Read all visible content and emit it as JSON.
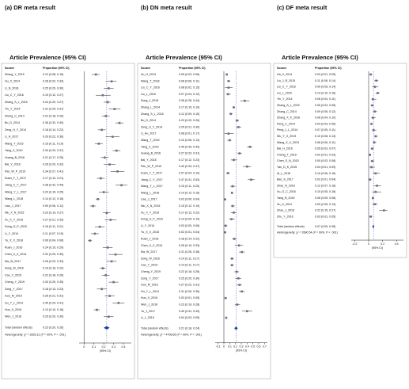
{
  "chart_data": [
    {
      "type": "forest",
      "title": "(a)  DR meta result",
      "subtitle": "Article  Prevalence  (95% CI)",
      "source_header": "Source",
      "estimate_header": "Proportion (95% CI)",
      "xlabel": "(95% CI)",
      "color": "#6e6e8a",
      "categories": [
        "Zhang_Y_2015",
        "Hu_X_2014",
        "Li_N_2016",
        "Liu_C_Y_2016",
        "Zhang_S_L_2015",
        "Yin_Y_2014",
        "Zhang_C_2014",
        "Bu_D_2014",
        "Zeng_H_Y_2014",
        "Li_H_2017",
        "Wang_T_2015",
        "Yang_X_2019",
        "Huang_B_2016",
        "Bai_Y_2018",
        "Pan_W_P_2015",
        "Duan_Y_T_2017",
        "Jiang_C_Y_2017",
        "Wang_Y_L_2017",
        "Wang_L_2018",
        "Liao_J_2017",
        "Niu_X_N_2015",
        "Xu_X_Y_2015",
        "Dong_G_P_2015",
        "Li_Y_2014",
        "Yu_X_X_2018",
        "Ruan_J_2016",
        "Chen_X_X_2014",
        "Ma_W_2017",
        "Song_W_2016",
        "Cao_Y_2015",
        "Cheng_Y_2019",
        "Zong_Y_2017",
        "Guo_M_2015",
        "Hu_Y_L_2014",
        "Huo_X_2016",
        "Wen_J_2016"
      ],
      "values": [
        0.12,
        0.28,
        0.25,
        0.19,
        0.24,
        0.31,
        0.22,
        0.36,
        0.18,
        0.29,
        0.15,
        0.33,
        0.21,
        0.26,
        0.34,
        0.17,
        0.38,
        0.2,
        0.14,
        0.09,
        0.23,
        0.27,
        0.16,
        0.11,
        0.06,
        0.24,
        0.32,
        0.28,
        0.19,
        0.22,
        0.3,
        0.18,
        0.26,
        0.35,
        0.13,
        0.25
      ],
      "ci_low": [
        0.08,
        0.22,
        0.2,
        0.12,
        0.2,
        0.25,
        0.18,
        0.32,
        0.14,
        0.22,
        0.11,
        0.29,
        0.17,
        0.2,
        0.27,
        0.13,
        0.32,
        0.15,
        0.12,
        0.06,
        0.19,
        0.21,
        0.11,
        0.07,
        0.04,
        0.19,
        0.25,
        0.23,
        0.16,
        0.18,
        0.25,
        0.13,
        0.21,
        0.29,
        0.1,
        0.2
      ],
      "ci_high": [
        0.16,
        0.33,
        0.3,
        0.27,
        0.27,
        0.37,
        0.26,
        0.4,
        0.22,
        0.36,
        0.19,
        0.37,
        0.25,
        0.32,
        0.41,
        0.21,
        0.44,
        0.25,
        0.16,
        0.12,
        0.27,
        0.33,
        0.21,
        0.15,
        0.08,
        0.29,
        0.39,
        0.33,
        0.22,
        0.26,
        0.35,
        0.23,
        0.31,
        0.41,
        0.16,
        0.3
      ],
      "value_labels": [
        "0.12 (0.08, 0.16)",
        "0.28 (0.22, 0.33)",
        "0.25 (0.20, 0.30)",
        "0.19 (0.12, 0.27)",
        "0.24 (0.20, 0.27)",
        "0.31 (0.25, 0.37)",
        "0.22 (0.18, 0.26)",
        "0.36 (0.32, 0.40)",
        "0.18 (0.14, 0.22)",
        "0.29 (0.22, 0.36)",
        "0.15 (0.11, 0.19)",
        "0.33 (0.29, 0.37)",
        "0.21 (0.17, 0.25)",
        "0.26 (0.20, 0.32)",
        "0.34 (0.27, 0.41)",
        "0.17 (0.13, 0.21)",
        "0.38 (0.32, 0.44)",
        "0.20 (0.15, 0.25)",
        "0.14 (0.12, 0.16)",
        "0.09 (0.06, 0.12)",
        "0.23 (0.19, 0.27)",
        "0.27 (0.21, 0.33)",
        "0.16 (0.11, 0.21)",
        "0.11 (0.07, 0.15)",
        "0.06 (0.04, 0.08)",
        "0.24 (0.19, 0.29)",
        "0.32 (0.25, 0.39)",
        "0.28 (0.23, 0.33)",
        "0.19 (0.16, 0.22)",
        "0.22 (0.18, 0.26)",
        "0.30 (0.25, 0.35)",
        "0.18 (0.13, 0.23)",
        "0.26 (0.21, 0.31)",
        "0.35 (0.29, 0.41)",
        "0.13 (0.10, 0.16)",
        "0.25 (0.20, 0.30)"
      ],
      "overall": {
        "name": "Total (random effects)",
        "value": 0.23,
        "ci_low": 0.2,
        "ci_high": 0.26,
        "label": "0.23 (0.20, 0.26)"
      },
      "heterogeneity": "Heterogeneity: χ² = 3925.12 (I² = 99%, P < .001)",
      "xlim": [
        -0.05,
        0.48
      ],
      "xticks": [
        0,
        0.1,
        0.2,
        0.3,
        0.4
      ]
    },
    {
      "type": "forest",
      "title": "(b)  DN meta result",
      "subtitle": "Article  Prevalence  (95% CI)",
      "source_header": "Source",
      "estimate_header": "Proportion (95% CI)",
      "xlabel": "(95% CI)",
      "color": "#6e6e8a",
      "categories": [
        "Xu_H_2014",
        "Wang_T_2018",
        "Liu_C_Y_2016",
        "Liu_L_2015",
        "Song_J_2016",
        "Zhang_L_2014",
        "Zhang_S_L_2015",
        "Bu_D_2014",
        "Zeng_H_Y_2014",
        "Li_Hu_2017",
        "Wang_T_2015",
        "Yang_X_2019",
        "Huang_B_2016",
        "Bai_Y_2018",
        "Pan_W_P_2015",
        "Duan_Y_T_2017",
        "Jiang_C_Y_2017",
        "Wang_Y_L_2017",
        "Wang_L_2018",
        "Liao_J_2017",
        "Niu_X_N_2015",
        "Xu_X_Y_2015",
        "Dong_G_P_2015",
        "Li_Y_2014",
        "Yu_X_X_2018",
        "Ruan_J_2016",
        "Chen_X_X_2014",
        "Ma_W_2017",
        "Song_W_2016",
        "Cao_Y_2015",
        "Cheng_Y_2019",
        "Zong_Y_2017",
        "Guo_M_2015",
        "Hu_Y_L_2014",
        "Huo_X_2016",
        "Wen_J_2016",
        "Yu_J_2017",
        "Li_L_2015"
      ],
      "values": [
        0.05,
        0.08,
        0.08,
        0.07,
        0.36,
        0.17,
        0.12,
        0.23,
        0.25,
        0.08,
        0.1,
        0.45,
        0.27,
        0.17,
        0.4,
        0.07,
        0.47,
        0.15,
        0.14,
        0.02,
        0.15,
        0.17,
        0.13,
        0.03,
        0.02,
        0.18,
        0.26,
        0.31,
        0.14,
        0.14,
        0.22,
        0.25,
        0.27,
        0.31,
        0.03,
        0.23,
        0.4,
        0.04
      ],
      "ci_low": [
        0.03,
        0.06,
        0.02,
        0.04,
        0.28,
        0.15,
        0.09,
        0.2,
        0.21,
        0.01,
        0.06,
        0.4,
        0.23,
        0.12,
        0.33,
        0.04,
        0.41,
        0.11,
        0.12,
        0.0,
        0.12,
        0.12,
        0.09,
        0.0,
        0.01,
        0.14,
        0.19,
        0.26,
        0.11,
        0.11,
        0.18,
        0.2,
        0.22,
        0.26,
        0.01,
        0.19,
        0.31,
        0.03
      ],
      "ci_high": [
        0.06,
        0.11,
        0.15,
        0.12,
        0.44,
        0.19,
        0.15,
        0.26,
        0.3,
        0.17,
        0.13,
        0.49,
        0.31,
        0.23,
        0.47,
        0.1,
        0.53,
        0.2,
        0.16,
        0.04,
        0.19,
        0.22,
        0.19,
        0.06,
        0.04,
        0.22,
        0.33,
        0.36,
        0.17,
        0.17,
        0.26,
        0.3,
        0.31,
        0.36,
        0.05,
        0.28,
        0.49,
        0.05
      ],
      "value_labels": [
        "0.05 (0.03, 0.06)",
        "0.08 (0.06, 0.11)",
        "0.08 (0.02, 0.15)",
        "0.07 (0.04, 0.12)",
        "0.36 (0.28, 0.44)",
        "0.17 (0.15, 0.19)",
        "0.12 (0.09, 0.15)",
        "0.23 (0.20, 0.26)",
        "0.25 (0.21, 0.30)",
        "0.08 (0.01, 0.17)",
        "0.10 (0.06, 0.13)",
        "0.45 (0.40, 0.49)",
        "0.27 (0.23, 0.31)",
        "0.17 (0.12, 0.23)",
        "0.40 (0.33, 0.47)",
        "0.07 (0.04, 0.10)",
        "0.47 (0.41, 0.53)",
        "0.15 (0.11, 0.20)",
        "0.14 (0.12, 0.16)",
        "0.02 (0.00, 0.04)",
        "0.15 (0.12, 0.19)",
        "0.17 (0.12, 0.22)",
        "0.13 (0.09, 0.19)",
        "0.03 (0.00, 0.06)",
        "0.02 (0.01, 0.04)",
        "0.18 (0.14, 0.22)",
        "0.26 (0.19, 0.33)",
        "0.31 (0.26, 0.36)",
        "0.14 (0.11, 0.17)",
        "0.14 (0.11, 0.17)",
        "0.22 (0.18, 0.26)",
        "0.25 (0.20, 0.30)",
        "0.27 (0.22, 0.31)",
        "0.31 (0.26, 0.36)",
        "0.03 (0.01, 0.05)",
        "0.23 (0.19, 0.28)",
        "0.40 (0.31, 0.49)",
        "0.04 (0.03, 0.05)"
      ],
      "overall": {
        "name": "Total (random effects)",
        "value": 0.21,
        "ci_low": 0.18,
        "ci_high": 0.24,
        "label": "0.21 (0.18, 0.24)"
      },
      "heterogeneity": "Heterogeneity: χ² = 4708.65 (I² = 99%, P < .001)",
      "xlim": [
        -0.15,
        0.75
      ],
      "xticks": [
        -0.1,
        0,
        0.1,
        0.2,
        0.3,
        0.4,
        0.5,
        0.6,
        0.7
      ]
    },
    {
      "type": "forest",
      "title": "(c) DF meta result",
      "subtitle": "Article  Prevalence  (95% CI)",
      "source_header": "Source",
      "estimate_header": "Proportion (95% CI)",
      "xlabel": "(95% CI)",
      "color": "#6e6e8a",
      "categories": [
        "Ha_X_2014",
        "Liu_J_R_2015",
        "Liu_C_Y_2016",
        "Liu_L_2015",
        "Yin_Y_2014",
        "Zhang_S_L_2015",
        "Zhang_C_2014",
        "Zhang_X_K_2016",
        "Peng_C_2014",
        "Peng_J_L_2014",
        "Wu_Y_X_2019",
        "Wang_X_X_2019",
        "Bai_H_2016",
        "Cheng_T_2019",
        "Chen_S_N_2015",
        "Yan_D_K_2015",
        "Ai_L_2016",
        "Bao_S_2017",
        "Zhao_N_2018",
        "Xu_G_C_2016",
        "Yang_B_2015",
        "Xu_S_2014",
        "Zhao_J_2016",
        "Zhu_Y_2016"
      ],
      "values": [
        0.03,
        0.11,
        0.09,
        0.13,
        0.06,
        0.05,
        0.09,
        0.06,
        0.04,
        0.07,
        0.1,
        0.08,
        0.05,
        0.02,
        0.05,
        0.04,
        0.1,
        0.02,
        0.12,
        0.1,
        0.06,
        0.09,
        0.22,
        0.03
      ],
      "ci_low": [
        0.01,
        0.08,
        0.05,
        0.1,
        0.04,
        0.03,
        0.06,
        0.04,
        0.03,
        0.05,
        0.08,
        0.06,
        0.03,
        0.01,
        0.03,
        0.01,
        0.06,
        0.01,
        0.07,
        0.05,
        0.05,
        0.05,
        0.15,
        0.01
      ],
      "ci_high": [
        0.05,
        0.14,
        0.14,
        0.16,
        0.11,
        0.08,
        0.12,
        0.1,
        0.06,
        0.11,
        0.13,
        0.11,
        0.07,
        0.03,
        0.08,
        0.09,
        0.16,
        0.04,
        0.18,
        0.18,
        0.08,
        0.13,
        0.27,
        0.05
      ],
      "value_labels": [
        "0.03 (0.01, 0.05)",
        "0.11 (0.08, 0.14)",
        "0.09 (0.05, 0.14)",
        "0.13 (0.10, 0.16)",
        "0.06 (0.04, 0.11)",
        "0.05 (0.03, 0.08)",
        "0.09 (0.06, 0.12)",
        "0.06 (0.04, 0.10)",
        "0.04 (0.03, 0.06)",
        "0.07 (0.05, 0.11)",
        "0.10 (0.08, 0.13)",
        "0.08 (0.06, 0.11)",
        "0.05 (0.03, 0.07)",
        "0.02 (0.01, 0.03)",
        "0.05 (0.03, 0.08)",
        "0.04 (0.01, 0.09)",
        "0.10 (0.06, 0.16)",
        "0.02 (0.01, 0.04)",
        "0.12 (0.07, 0.18)",
        "0.10 (0.05, 0.18)",
        "0.06 (0.05, 0.08)",
        "0.09 (0.05, 0.13)",
        "0.22 (0.15, 0.27)",
        "0.03 (0.01, 0.05)"
      ],
      "overall": {
        "name": "Total (random effects)",
        "value": 0.07,
        "ci_low": 0.05,
        "ci_high": 0.08,
        "label": "0.07 (0.05, 0.08)"
      },
      "heterogeneity": "Heterogeneity: χ² = 2680.54 (I² = 99%, P < .001)",
      "xlim": [
        -0.25,
        0.5
      ],
      "xticks": [
        -0.2,
        0,
        0.2,
        0.4
      ]
    }
  ]
}
